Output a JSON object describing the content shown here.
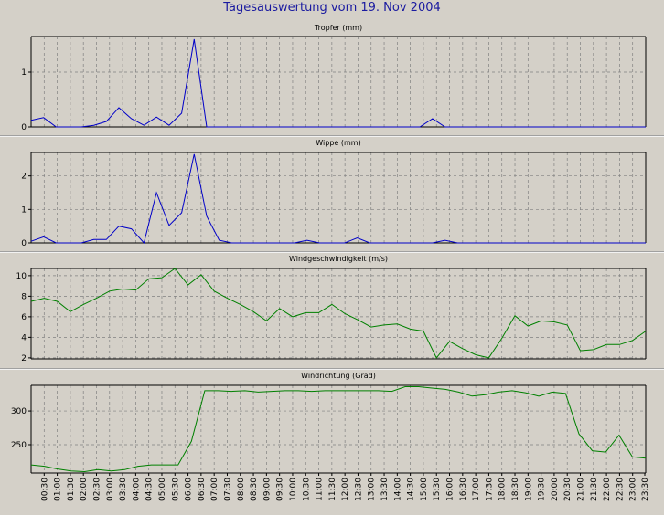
{
  "page": {
    "title": "Tagesauswertung vom 19. Nov 2004"
  },
  "x_ticks": [
    "00:30",
    "01:00",
    "01:30",
    "02:00",
    "02:30",
    "03:00",
    "03:30",
    "04:00",
    "04:30",
    "05:00",
    "05:30",
    "06:00",
    "06:30",
    "07:00",
    "07:30",
    "08:00",
    "08:30",
    "09:00",
    "09:30",
    "10:00",
    "10:30",
    "11:00",
    "11:30",
    "12:00",
    "12:30",
    "13:00",
    "13:30",
    "14:00",
    "14:30",
    "15:00",
    "15:30",
    "16:00",
    "16:30",
    "17:00",
    "17:30",
    "18:00",
    "18:30",
    "19:00",
    "19:30",
    "20:00",
    "20:30",
    "21:00",
    "21:30",
    "22:00",
    "22:30",
    "23:00",
    "23:30"
  ],
  "chart_data": [
    {
      "type": "line",
      "title": "Tropfer (mm)",
      "ylim": [
        0,
        1.65
      ],
      "yticks": [
        0,
        1
      ],
      "color": "#0000c8",
      "grid": true,
      "series": [
        {
          "values": [
            0.12,
            0.17,
            0,
            0,
            0,
            0.03,
            0.1,
            0.35,
            0.15,
            0.03,
            0.18,
            0.03,
            0.25,
            1.6,
            0,
            0,
            0,
            0,
            0,
            0,
            0,
            0,
            0,
            0,
            0,
            0,
            0,
            0,
            0,
            0,
            0,
            0,
            0.15,
            0,
            0,
            0,
            0,
            0,
            0,
            0,
            0,
            0,
            0,
            0,
            0,
            0,
            0,
            0,
            0,
            0
          ]
        }
      ]
    },
    {
      "type": "line",
      "title": "Wippe (mm)",
      "ylim": [
        0,
        2.7
      ],
      "yticks": [
        0,
        1,
        2
      ],
      "color": "#0000c8",
      "grid": true,
      "series": [
        {
          "values": [
            0.05,
            0.18,
            0,
            0,
            0,
            0.1,
            0.1,
            0.5,
            0.42,
            0,
            1.5,
            0.52,
            0.9,
            2.65,
            0.8,
            0.08,
            0,
            0,
            0,
            0,
            0,
            0,
            0.08,
            0,
            0,
            0,
            0.15,
            0,
            0,
            0,
            0,
            0,
            0,
            0.08,
            0,
            0,
            0,
            0,
            0,
            0,
            0,
            0,
            0,
            0,
            0,
            0,
            0,
            0,
            0,
            0
          ]
        }
      ]
    },
    {
      "type": "line",
      "title": "Windgeschwindigkeit (m/s)",
      "ylim": [
        1.9,
        10.7
      ],
      "yticks": [
        2,
        4,
        6,
        8,
        10
      ],
      "color": "#008000",
      "grid": true,
      "series": [
        {
          "values": [
            7.5,
            7.8,
            7.5,
            6.5,
            7.2,
            7.8,
            8.5,
            8.7,
            8.6,
            9.7,
            9.8,
            10.7,
            9.1,
            10.1,
            8.5,
            7.8,
            7.2,
            6.5,
            5.6,
            6.8,
            6.0,
            6.4,
            6.4,
            7.2,
            6.3,
            5.7,
            5.0,
            5.2,
            5.3,
            4.8,
            4.6,
            2.0,
            3.6,
            2.9,
            2.3,
            2.0,
            3.9,
            6.1,
            5.1,
            5.6,
            5.5,
            5.2,
            2.7,
            2.8,
            3.3,
            3.3,
            3.7,
            4.6
          ]
        }
      ]
    },
    {
      "type": "line",
      "title": "Windrichtung (Grad)",
      "ylim": [
        208,
        338
      ],
      "yticks": [
        250,
        300
      ],
      "color": "#008000",
      "grid": true,
      "series": [
        {
          "values": [
            220,
            218,
            214,
            211,
            210,
            213,
            211,
            213,
            218,
            220,
            220,
            220,
            255,
            330,
            330,
            329,
            330,
            328,
            329,
            330,
            330,
            329,
            330,
            330,
            330,
            330,
            330,
            329,
            336,
            336,
            334,
            332,
            328,
            322,
            324,
            328,
            330,
            327,
            322,
            328,
            326,
            266,
            241,
            239,
            264,
            232,
            230
          ]
        }
      ]
    }
  ]
}
